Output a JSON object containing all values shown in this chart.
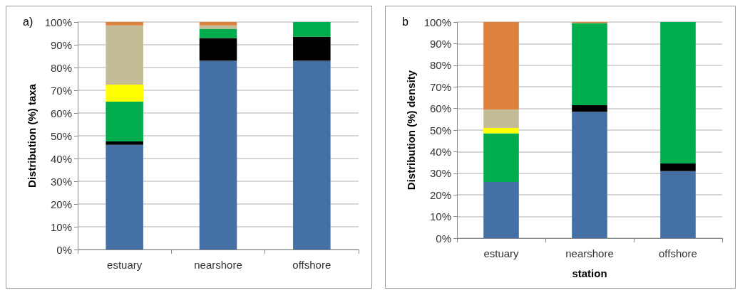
{
  "chart_data": [
    {
      "type": "bar",
      "title": "a)",
      "ylabel": "Distribution (%) taxa",
      "categories": [
        "estuary",
        "nearshore",
        "offshore"
      ],
      "stacked": true,
      "grid": "y",
      "ylim": [
        0,
        100
      ],
      "yticks": [
        {
          "value": 0,
          "label": "0%"
        },
        {
          "value": 10,
          "label": "10%"
        },
        {
          "value": 20,
          "label": "20%"
        },
        {
          "value": 30,
          "label": "30%"
        },
        {
          "value": 40,
          "label": "40%"
        },
        {
          "value": 50,
          "label": "50%"
        },
        {
          "value": 60,
          "label": "60%"
        },
        {
          "value": 70,
          "label": "70%"
        },
        {
          "value": 80,
          "label": "80%"
        },
        {
          "value": 90,
          "label": "90%"
        },
        {
          "value": 100,
          "label": "100%"
        }
      ],
      "series": [
        {
          "color": "#4470a6",
          "values": [
            46,
            83,
            83
          ]
        },
        {
          "color": "#000000",
          "values": [
            1.5,
            10,
            10.5
          ]
        },
        {
          "color": "#00ac4c",
          "values": [
            17.5,
            4,
            6.5
          ]
        },
        {
          "color": "#ffff00",
          "values": [
            7.5,
            null,
            null
          ]
        },
        {
          "color": "#c4bc96",
          "values": [
            26,
            1.5,
            null
          ]
        },
        {
          "color": "#dc823c",
          "values": [
            1.5,
            1.5,
            null
          ]
        }
      ]
    },
    {
      "type": "bar",
      "title": "b",
      "ylabel": "Distribution (%) density",
      "xlabel": "station",
      "categories": [
        "estuary",
        "nearshore",
        "offshore"
      ],
      "stacked": true,
      "grid": "y",
      "ylim": [
        0,
        100
      ],
      "yticks": [
        {
          "value": 0,
          "label": "0%"
        },
        {
          "value": 10,
          "label": "10%"
        },
        {
          "value": 20,
          "label": "20%"
        },
        {
          "value": 30,
          "label": "30%"
        },
        {
          "value": 40,
          "label": "40%"
        },
        {
          "value": 50,
          "label": "50%"
        },
        {
          "value": 60,
          "label": "60%"
        },
        {
          "value": 70,
          "label": "70%"
        },
        {
          "value": 80,
          "label": "80%"
        },
        {
          "value": 90,
          "label": "90%"
        },
        {
          "value": 100,
          "label": "100%"
        }
      ],
      "series": [
        {
          "color": "#4470a6",
          "values": [
            26,
            58.5,
            31
          ]
        },
        {
          "color": "#000000",
          "values": [
            null,
            3,
            3.5
          ]
        },
        {
          "color": "#00ac4c",
          "values": [
            22.5,
            38,
            65.5
          ]
        },
        {
          "color": "#ffff00",
          "values": [
            2.5,
            null,
            null
          ]
        },
        {
          "color": "#c4bc96",
          "values": [
            8.5,
            null,
            null
          ]
        },
        {
          "color": "#dc823c",
          "values": [
            40.5,
            0.5,
            null
          ]
        }
      ]
    }
  ]
}
